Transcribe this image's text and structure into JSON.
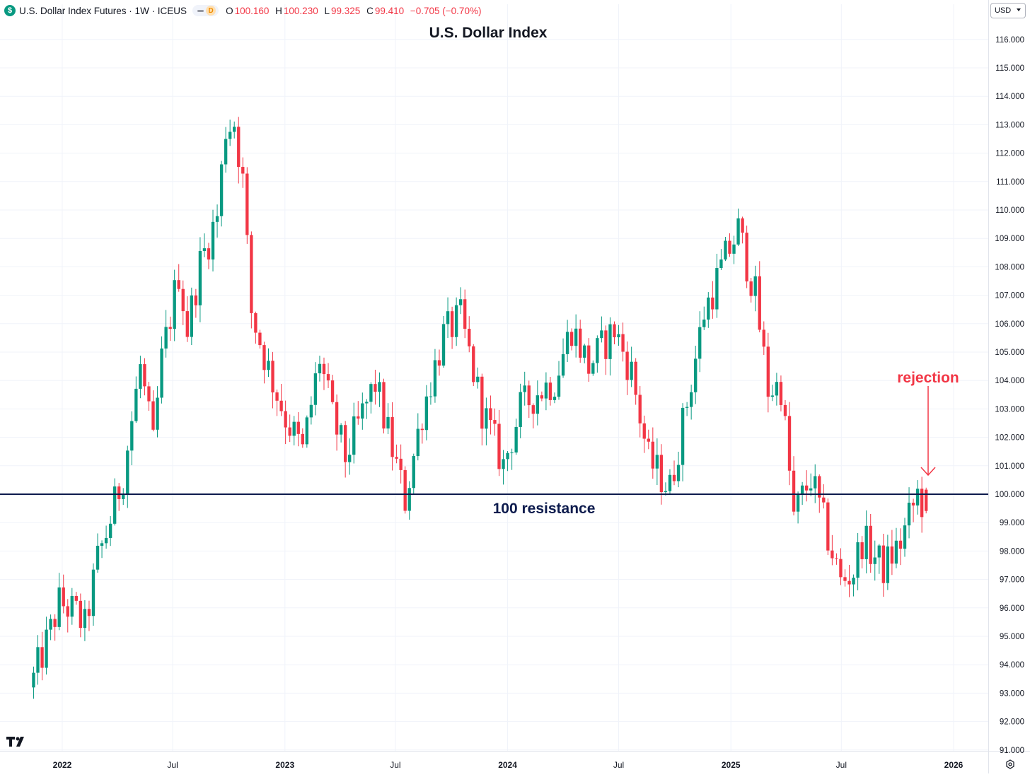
{
  "legend": {
    "symbol_badge": "$",
    "title": "U.S. Dollar Index Futures · 1W · ICEUS",
    "interval_badge": "D",
    "ohlc": [
      {
        "label": "O",
        "value": "100.160"
      },
      {
        "label": "H",
        "value": "100.230"
      },
      {
        "label": "L",
        "value": "99.325"
      },
      {
        "label": "C",
        "value": "99.410"
      }
    ],
    "change": "−0.705 (−0.70%)",
    "down_color": "#f23645"
  },
  "currency": "USD",
  "chart_data": {
    "type": "candlestick",
    "title": "U.S. Dollar Index",
    "ylim": [
      91,
      116.5
    ],
    "y_ticks": [
      "116.000",
      "115.000",
      "114.000",
      "113.000",
      "112.000",
      "111.000",
      "110.000",
      "109.000",
      "108.000",
      "107.000",
      "106.000",
      "105.000",
      "104.000",
      "103.000",
      "102.000",
      "101.000",
      "100.000",
      "99.000",
      "98.000",
      "97.000",
      "96.000",
      "95.000",
      "94.000",
      "93.000",
      "92.000",
      "91.000"
    ],
    "x_ticks": [
      "2022",
      "Jul",
      "2023",
      "Jul",
      "2024",
      "Jul",
      "2025",
      "Jul",
      "2026"
    ],
    "grid": true,
    "up_color": "#089981",
    "down_color": "#f23645",
    "resistance": {
      "value": 100,
      "label": "100 resistance",
      "color": "#0d1b4d"
    },
    "annotation": {
      "text": "rejection",
      "color": "#f23645"
    },
    "anchors": [
      {
        "date": "2021-11-15",
        "value": 93.5
      },
      {
        "date": "2021-12-13",
        "value": 95.2
      },
      {
        "date": "2021-12-27",
        "value": 96.2
      },
      {
        "date": "2022-01-24",
        "value": 95.8
      },
      {
        "date": "2022-02-07",
        "value": 95.3
      },
      {
        "date": "2022-02-28",
        "value": 97.7
      },
      {
        "date": "2022-03-14",
        "value": 98.6
      },
      {
        "date": "2022-04-11",
        "value": 100.7
      },
      {
        "date": "2022-05-09",
        "value": 104.5
      },
      {
        "date": "2022-05-30",
        "value": 101.7
      },
      {
        "date": "2022-06-13",
        "value": 104.7
      },
      {
        "date": "2022-07-11",
        "value": 107.8
      },
      {
        "date": "2022-07-25",
        "value": 105.8
      },
      {
        "date": "2022-08-15",
        "value": 108.1
      },
      {
        "date": "2022-09-12",
        "value": 109.8
      },
      {
        "date": "2022-09-26",
        "value": 112.9
      },
      {
        "date": "2022-10-10",
        "value": 113.1
      },
      {
        "date": "2022-10-24",
        "value": 111.0
      },
      {
        "date": "2022-11-07",
        "value": 106.4
      },
      {
        "date": "2022-12-05",
        "value": 104.4
      },
      {
        "date": "2023-01-02",
        "value": 102.7
      },
      {
        "date": "2023-01-30",
        "value": 101.5
      },
      {
        "date": "2023-02-27",
        "value": 104.8
      },
      {
        "date": "2023-03-20",
        "value": 102.7
      },
      {
        "date": "2023-04-10",
        "value": 101.3
      },
      {
        "date": "2023-05-08",
        "value": 102.8
      },
      {
        "date": "2023-05-29",
        "value": 103.9
      },
      {
        "date": "2023-07-17",
        "value": 99.8
      },
      {
        "date": "2023-08-14",
        "value": 102.9
      },
      {
        "date": "2023-09-18",
        "value": 105.6
      },
      {
        "date": "2023-10-16",
        "value": 106.2
      },
      {
        "date": "2023-11-20",
        "value": 103.0
      },
      {
        "date": "2023-12-25",
        "value": 101.0
      },
      {
        "date": "2024-01-22",
        "value": 103.0
      },
      {
        "date": "2024-02-19",
        "value": 103.6
      },
      {
        "date": "2024-03-18",
        "value": 104.0
      },
      {
        "date": "2024-04-15",
        "value": 105.9
      },
      {
        "date": "2024-05-13",
        "value": 104.5
      },
      {
        "date": "2024-06-24",
        "value": 105.8
      },
      {
        "date": "2024-07-22",
        "value": 104.3
      },
      {
        "date": "2024-08-19",
        "value": 101.2
      },
      {
        "date": "2024-09-23",
        "value": 100.2
      },
      {
        "date": "2024-10-28",
        "value": 104.0
      },
      {
        "date": "2024-11-18",
        "value": 106.4
      },
      {
        "date": "2024-12-23",
        "value": 108.3
      },
      {
        "date": "2025-01-13",
        "value": 109.3
      },
      {
        "date": "2025-02-10",
        "value": 107.0
      },
      {
        "date": "2025-03-03",
        "value": 103.7
      },
      {
        "date": "2025-03-24",
        "value": 103.8
      },
      {
        "date": "2025-04-14",
        "value": 99.2
      },
      {
        "date": "2025-05-12",
        "value": 100.6
      },
      {
        "date": "2025-06-30",
        "value": 96.9
      },
      {
        "date": "2025-07-21",
        "value": 97.3
      },
      {
        "date": "2025-08-04",
        "value": 98.4
      },
      {
        "date": "2025-09-08",
        "value": 97.4
      },
      {
        "date": "2025-10-06",
        "value": 98.3
      },
      {
        "date": "2025-11-03",
        "value": 100.0
      },
      {
        "date": "2025-11-17",
        "value": 99.41
      }
    ]
  }
}
